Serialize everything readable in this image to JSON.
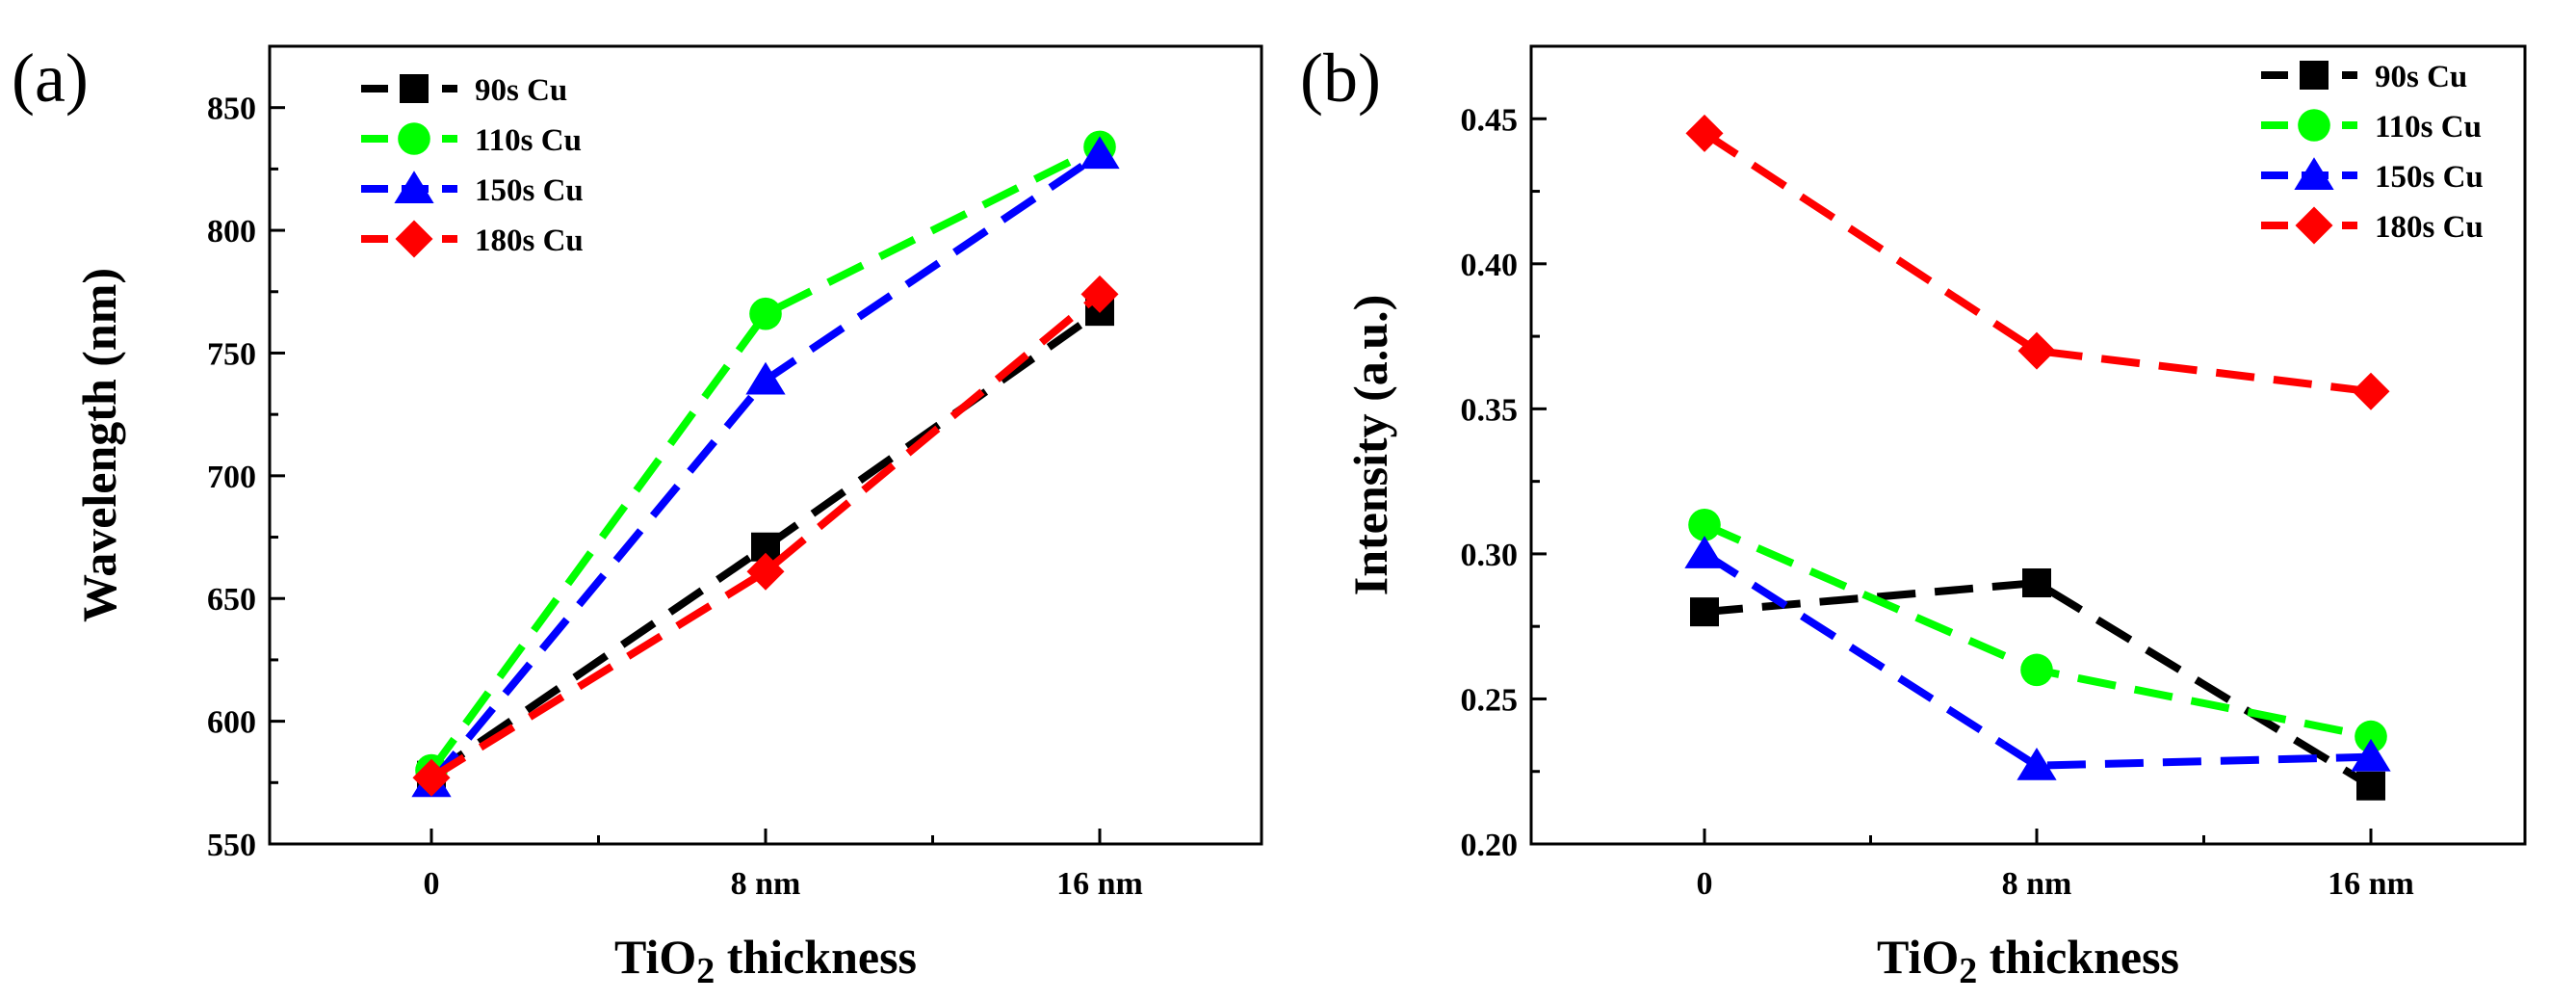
{
  "chart_data": [
    {
      "type": "line",
      "panel_label": "(a)",
      "categories": [
        "0",
        "8 nm",
        "16 nm"
      ],
      "xlabel": "TiO2 thickness",
      "ylabel": "Wavelength (nm)",
      "ylim": [
        550,
        875
      ],
      "yticks": [
        550,
        600,
        650,
        700,
        750,
        800,
        850
      ],
      "legend_position": "top-left",
      "series": [
        {
          "name": "90s Cu",
          "marker": "square",
          "color": "#000000",
          "values": [
            578,
            671,
            767
          ]
        },
        {
          "name": "110s Cu",
          "marker": "circle",
          "color": "#00ff00",
          "values": [
            580,
            766,
            834
          ]
        },
        {
          "name": "150s Cu",
          "marker": "triangle",
          "color": "#0000ff",
          "values": [
            575,
            739,
            831
          ]
        },
        {
          "name": "180s Cu",
          "marker": "diamond",
          "color": "#ff0000",
          "values": [
            577,
            661,
            774
          ]
        }
      ]
    },
    {
      "type": "line",
      "panel_label": "(b)",
      "categories": [
        "0",
        "8 nm",
        "16 nm"
      ],
      "xlabel": "TiO2 thickness",
      "ylabel": "Intensity (a.u.)",
      "ylim": [
        0.2,
        0.475
      ],
      "yticks": [
        0.2,
        0.25,
        0.3,
        0.35,
        0.4,
        0.45
      ],
      "legend_position": "top-right",
      "series": [
        {
          "name": "90s Cu",
          "marker": "square",
          "color": "#000000",
          "values": [
            0.28,
            0.29,
            0.22
          ]
        },
        {
          "name": "110s Cu",
          "marker": "circle",
          "color": "#00ff00",
          "values": [
            0.31,
            0.26,
            0.237
          ]
        },
        {
          "name": "150s Cu",
          "marker": "triangle",
          "color": "#0000ff",
          "values": [
            0.3,
            0.227,
            0.23
          ]
        },
        {
          "name": "180s Cu",
          "marker": "diamond",
          "color": "#ff0000",
          "values": [
            0.445,
            0.37,
            0.356
          ]
        }
      ]
    }
  ]
}
